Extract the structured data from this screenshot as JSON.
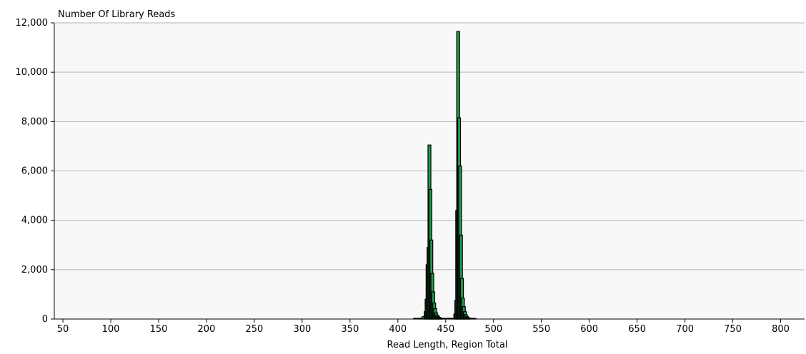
{
  "colors": {
    "plot_background": "#f8f8f8",
    "grid": "#b4b4b4",
    "bar_fill": "#1f9e4a",
    "bar_stroke": "#000000",
    "axis": "#000000",
    "text": "#000000"
  },
  "chart_data": {
    "type": "bar",
    "title": "",
    "ylabel": "Number Of Library Reads",
    "xlabel": "Read Length, Region Total",
    "xlim": [
      41,
      825
    ],
    "ylim": [
      0,
      12000
    ],
    "grid": true,
    "legend": "none",
    "x_ticks": [
      50,
      100,
      150,
      200,
      250,
      300,
      350,
      400,
      450,
      500,
      550,
      600,
      650,
      700,
      750,
      800
    ],
    "x_tick_labels": [
      "50",
      "100",
      "150",
      "200",
      "250",
      "300",
      "350",
      "400",
      "450",
      "500",
      "550",
      "600",
      "650",
      "700",
      "750",
      "800"
    ],
    "y_ticks": [
      0,
      2000,
      4000,
      6000,
      8000,
      10000,
      12000
    ],
    "y_tick_labels": [
      "0",
      "2,000",
      "4,000",
      "6,000",
      "8,000",
      "10,000",
      "12,000"
    ],
    "series": [
      {
        "bar_width": 3,
        "x": [
          418,
          422,
          425,
          427,
          429,
          430,
          431,
          432,
          433,
          434,
          435,
          436,
          437,
          438,
          439,
          440,
          441,
          442,
          443,
          444,
          445,
          446,
          448,
          452,
          455,
          458,
          460,
          461,
          462,
          463,
          464,
          465,
          466,
          467,
          468,
          469,
          470,
          471,
          472,
          473,
          474,
          475,
          477,
          480
        ],
        "values": [
          5,
          10,
          40,
          100,
          300,
          800,
          2200,
          2900,
          7050,
          5250,
          3200,
          1850,
          1100,
          650,
          420,
          250,
          160,
          110,
          70,
          45,
          30,
          20,
          10,
          5,
          5,
          30,
          200,
          750,
          4400,
          11650,
          8150,
          6200,
          3400,
          1650,
          850,
          500,
          300,
          180,
          110,
          70,
          45,
          25,
          10,
          5
        ]
      }
    ]
  }
}
